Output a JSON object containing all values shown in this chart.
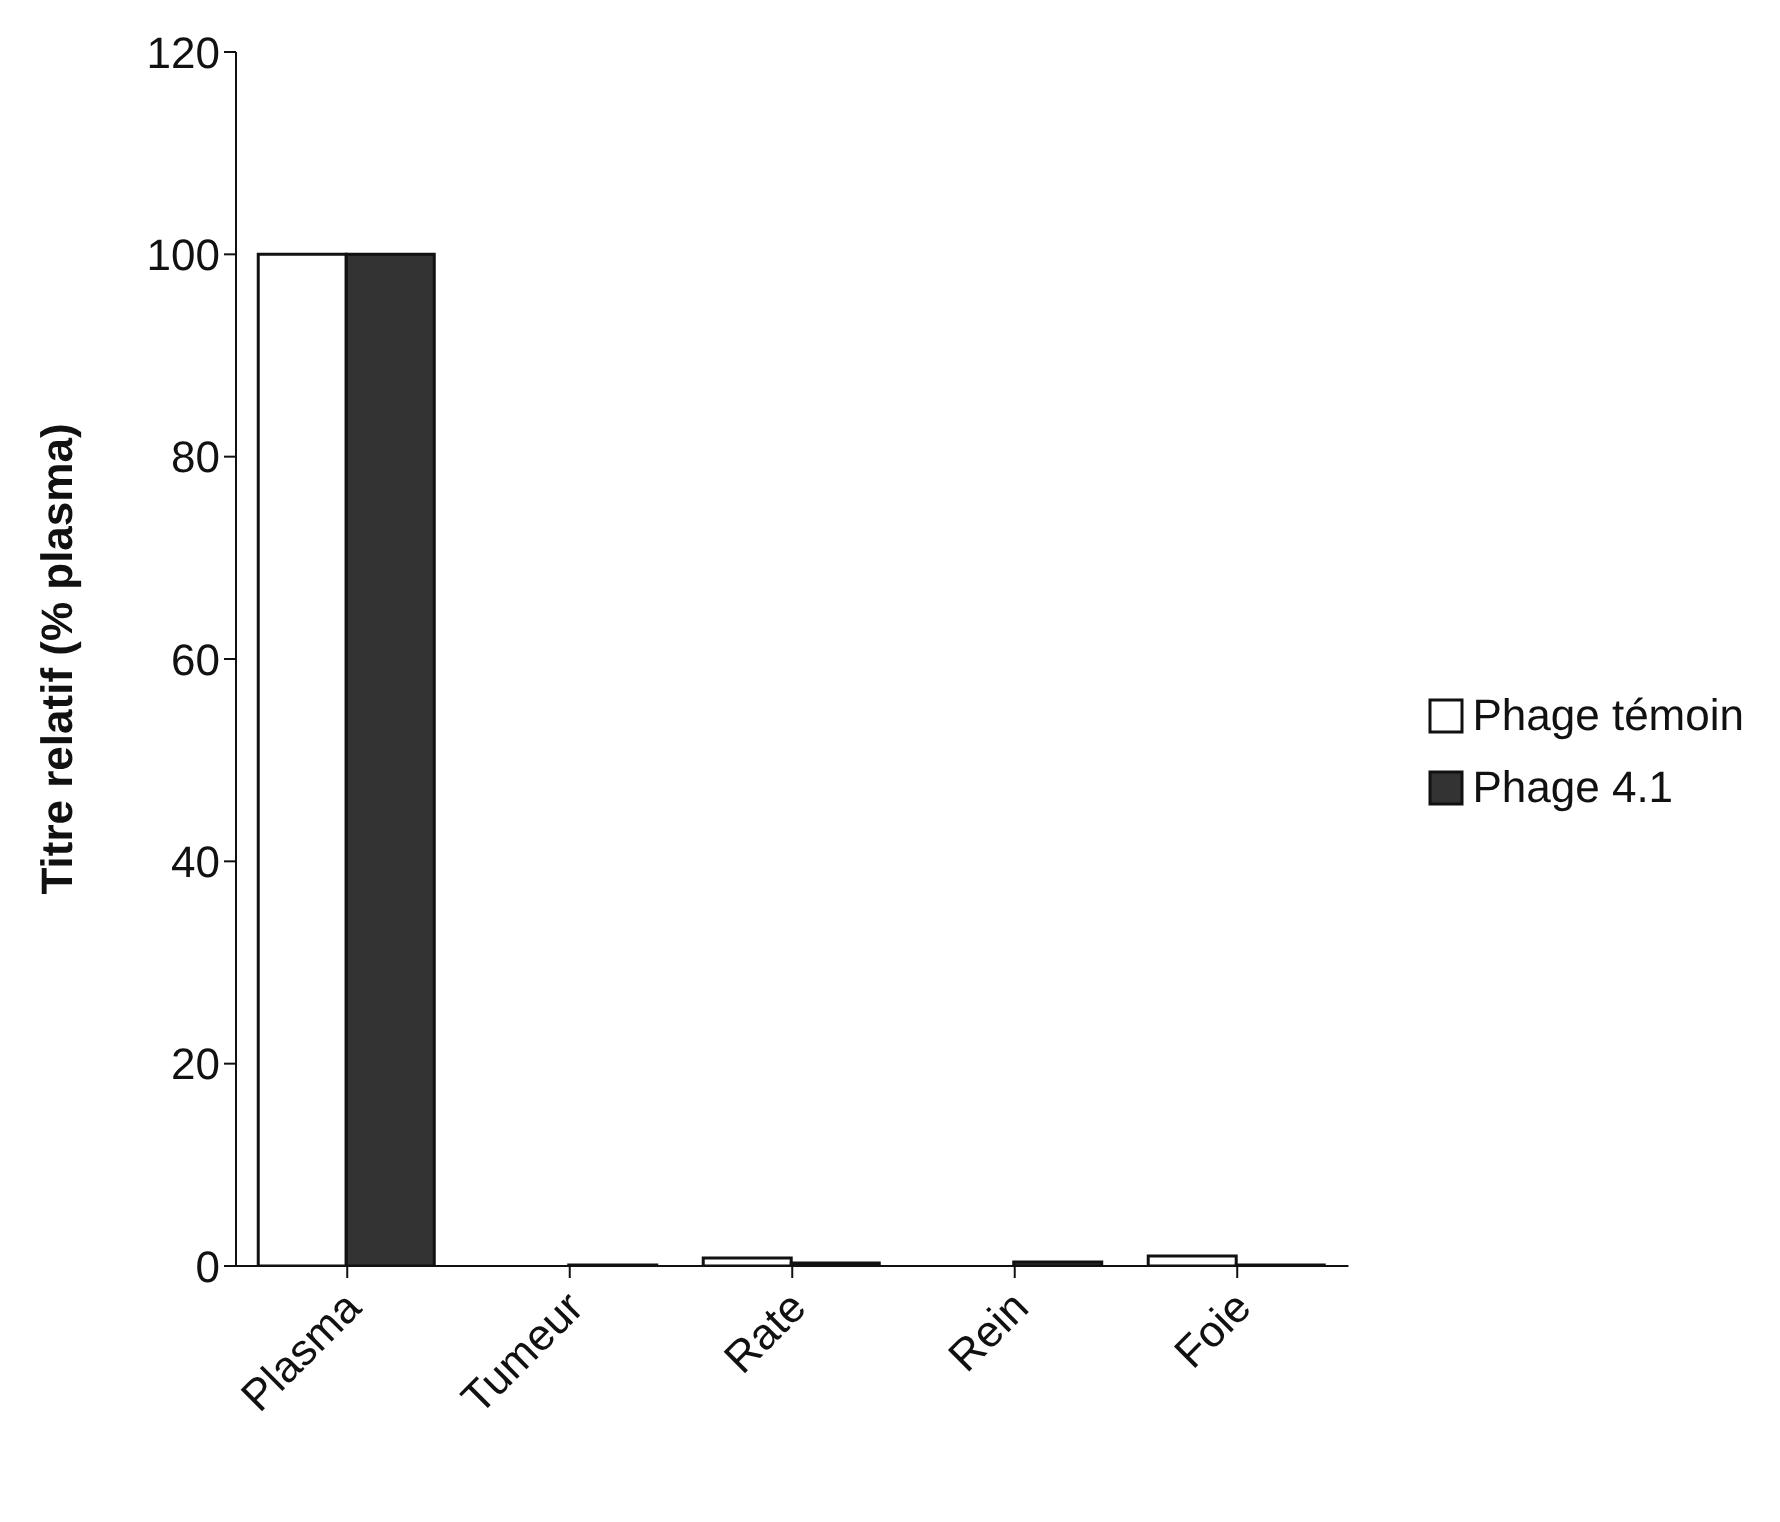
{
  "chart_data": {
    "type": "bar",
    "ylabel": "Titre relatif (% plasma)",
    "categories": [
      "Plasma",
      "Tumeur",
      "Rate",
      "Rein",
      "Foie"
    ],
    "series": [
      {
        "name": "Phage témoin",
        "color": "#ffffff",
        "values": [
          100,
          null,
          0.8,
          null,
          1.0
        ]
      },
      {
        "name": "Phage 4.1",
        "color": "#333333",
        "values": [
          100,
          0.1,
          0.3,
          0.4,
          0.1
        ]
      }
    ],
    "ylim": [
      0,
      120
    ],
    "yticks": [
      0,
      20,
      40,
      60,
      80,
      100,
      120
    ],
    "grid": false,
    "legend": "right"
  }
}
